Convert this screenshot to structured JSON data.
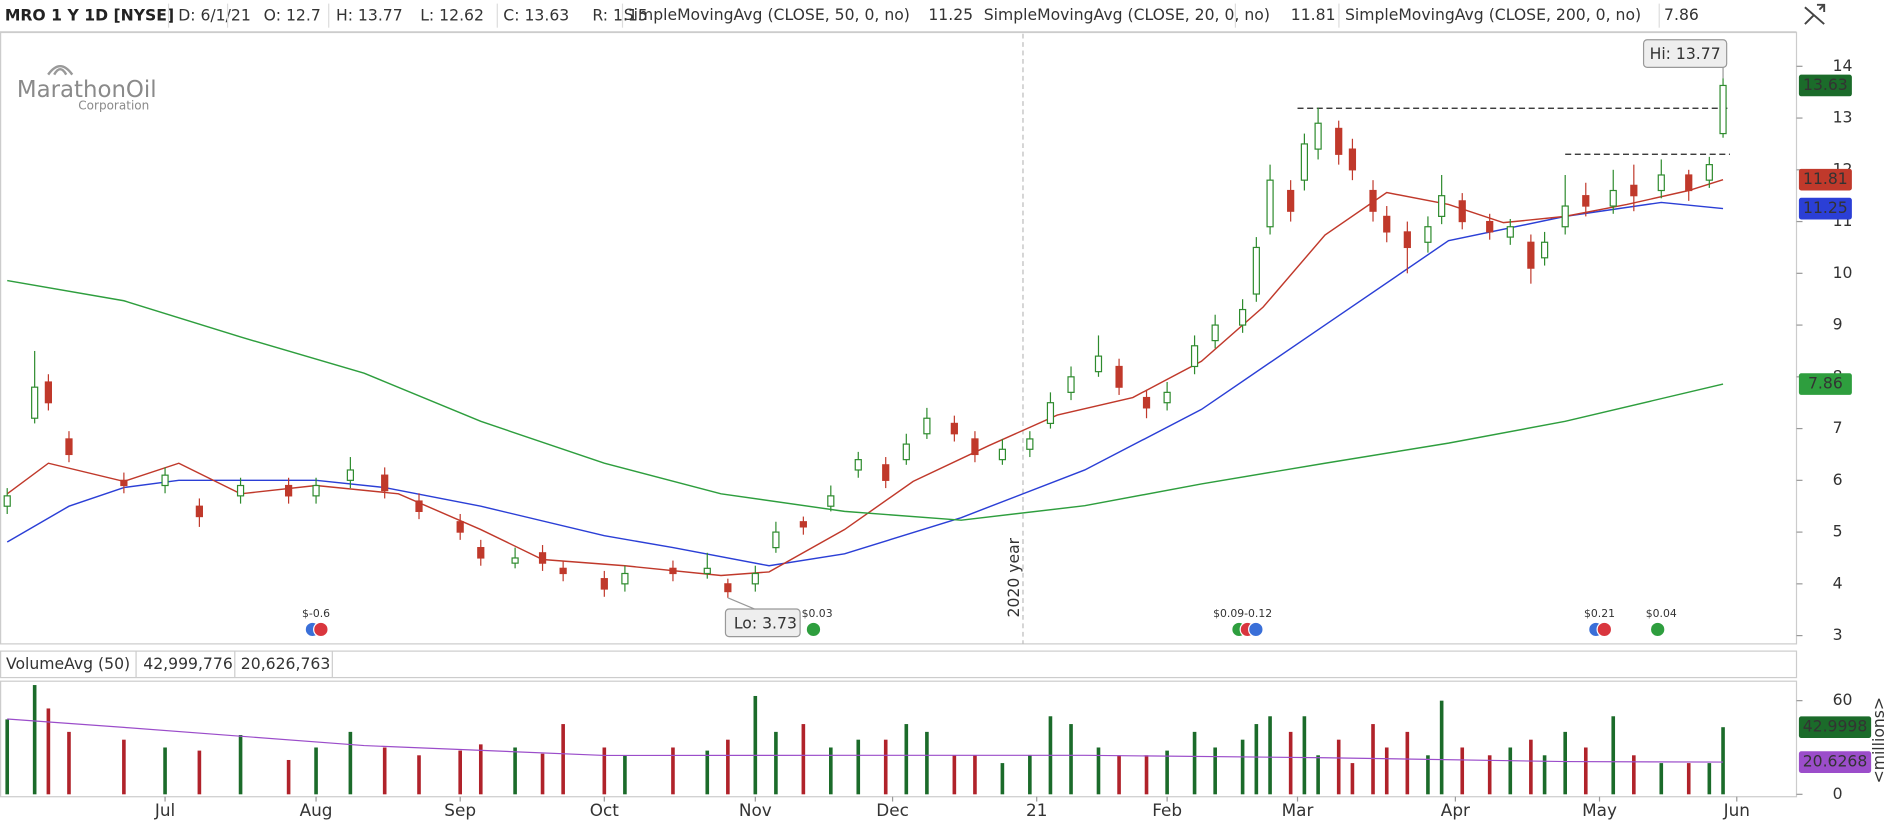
{
  "header": {
    "symbol": "MRO 1 Y 1D [NYSE]",
    "date_label": "D:",
    "date": "6/1/21",
    "open_label": "O:",
    "high_label": "H:",
    "low_label": "L:",
    "close_label": "C:",
    "range_label": "R:",
    "range": 1.15
  },
  "logo": {
    "name": "MarathonOil",
    "sub": "Corporation"
  },
  "year_marker": {
    "label": "2020 year",
    "x": 148
  },
  "events": [
    {
      "label": "$-0.6",
      "x": 45,
      "colors": [
        "#3a6fd8",
        "#d9363e"
      ]
    },
    {
      "label": "$0.03",
      "x": 118,
      "colors": [
        "#2e9e3e"
      ]
    },
    {
      "label": "$0.09-0.12",
      "x": 180,
      "colors": [
        "#2e9e3e",
        "#d9363e",
        "#3a6fd8"
      ]
    },
    {
      "label": "$0.21",
      "x": 232,
      "colors": [
        "#3a6fd8",
        "#d9363e"
      ]
    },
    {
      "label": "$0.04",
      "x": 241,
      "colors": [
        "#2e9e3e"
      ]
    }
  ],
  "chart_data": [
    {
      "type": "candlestick",
      "hi_label": "Hi:",
      "lo_label": "Lo:",
      "color_up": "#2e8b2e",
      "color_down": "#c0392b",
      "xlim": [
        -1.05,
        260.7
      ],
      "ylim": [
        2.84,
        14.63
      ],
      "yticks": [
        3,
        4,
        5,
        6,
        7,
        8,
        9,
        10,
        11,
        12,
        13,
        14
      ],
      "xticks": [
        {
          "value": 23,
          "label": "Jul"
        },
        {
          "value": 45,
          "label": "Aug"
        },
        {
          "value": 66,
          "label": "Sep"
        },
        {
          "value": 87,
          "label": "Oct"
        },
        {
          "value": 109,
          "label": "Nov"
        },
        {
          "value": 129,
          "label": "Dec"
        },
        {
          "value": 150,
          "label": "21"
        },
        {
          "value": 169,
          "label": "Feb"
        },
        {
          "value": 188,
          "label": "Mar"
        },
        {
          "value": 211,
          "label": "Apr"
        },
        {
          "value": 232,
          "label": "May"
        },
        {
          "value": 252,
          "label": "Jun"
        }
      ],
      "x": [
        0,
        4,
        6,
        9,
        17,
        23,
        28,
        34,
        41,
        45,
        50,
        55,
        60,
        66,
        69,
        74,
        78,
        81,
        87,
        90,
        97,
        102,
        105,
        109,
        112,
        116,
        120,
        124,
        128,
        131,
        134,
        138,
        141,
        145,
        149,
        152,
        155,
        159,
        162,
        166,
        169,
        173,
        176,
        180,
        182,
        184,
        187,
        189,
        191,
        194,
        196,
        199,
        201,
        204,
        207,
        209,
        212,
        216,
        219,
        222,
        224,
        227,
        230,
        234,
        237,
        241,
        245,
        248,
        250
      ],
      "open": [
        5.5,
        7.2,
        7.9,
        6.8,
        6.0,
        5.9,
        5.5,
        5.7,
        5.9,
        5.7,
        6.0,
        6.1,
        5.6,
        5.2,
        4.7,
        4.4,
        4.6,
        4.3,
        4.1,
        4.0,
        4.3,
        4.2,
        4.0,
        4.0,
        4.7,
        5.2,
        5.5,
        6.2,
        6.3,
        6.4,
        6.9,
        7.1,
        6.8,
        6.4,
        6.6,
        7.1,
        7.7,
        8.1,
        8.2,
        7.6,
        7.5,
        8.2,
        8.7,
        9.0,
        9.6,
        10.9,
        11.6,
        11.8,
        12.4,
        12.8,
        12.4,
        11.6,
        11.1,
        10.8,
        10.6,
        11.1,
        11.4,
        11.0,
        10.7,
        10.6,
        10.3,
        10.9,
        11.5,
        11.3,
        11.7,
        11.6,
        11.9,
        11.8,
        12.7
      ],
      "high": [
        5.85,
        8.5,
        8.05,
        6.95,
        6.15,
        6.25,
        5.65,
        6.05,
        6.05,
        6.05,
        6.45,
        6.25,
        5.75,
        5.35,
        4.85,
        4.7,
        4.75,
        4.45,
        4.25,
        4.35,
        4.45,
        4.6,
        4.1,
        4.35,
        5.2,
        5.3,
        5.9,
        6.55,
        6.45,
        6.9,
        7.4,
        7.25,
        6.95,
        6.8,
        6.95,
        7.7,
        8.2,
        8.8,
        8.35,
        7.75,
        7.9,
        8.8,
        9.2,
        9.5,
        10.7,
        12.1,
        11.8,
        12.7,
        13.2,
        12.95,
        12.6,
        11.8,
        11.3,
        11.0,
        11.1,
        11.9,
        11.55,
        11.15,
        11.05,
        10.75,
        10.8,
        11.9,
        11.75,
        12.0,
        12.1,
        12.2,
        12.0,
        12.25,
        13.77
      ],
      "low": [
        5.35,
        7.1,
        7.35,
        6.35,
        5.75,
        5.75,
        5.1,
        5.55,
        5.55,
        5.55,
        5.85,
        5.65,
        5.25,
        4.85,
        4.35,
        4.3,
        4.25,
        4.05,
        3.75,
        3.85,
        4.05,
        4.1,
        3.73,
        3.85,
        4.6,
        4.95,
        5.4,
        6.05,
        5.85,
        6.3,
        6.8,
        6.75,
        6.35,
        6.3,
        6.45,
        7.0,
        7.55,
        8.0,
        7.65,
        7.2,
        7.35,
        8.05,
        8.55,
        8.85,
        9.45,
        10.75,
        11.0,
        11.6,
        12.2,
        12.1,
        11.8,
        11.0,
        10.6,
        10.0,
        10.4,
        10.95,
        10.85,
        10.65,
        10.55,
        9.8,
        10.15,
        10.75,
        11.1,
        11.15,
        11.2,
        11.45,
        11.4,
        11.65,
        12.62
      ],
      "close": [
        5.7,
        7.8,
        7.5,
        6.5,
        5.9,
        6.1,
        5.3,
        5.9,
        5.7,
        5.9,
        6.2,
        5.8,
        5.4,
        5.0,
        4.5,
        4.5,
        4.4,
        4.2,
        3.9,
        4.2,
        4.2,
        4.3,
        3.85,
        4.2,
        5.0,
        5.1,
        5.7,
        6.4,
        6.0,
        6.7,
        7.2,
        6.9,
        6.5,
        6.6,
        6.8,
        7.5,
        8.0,
        8.4,
        7.8,
        7.4,
        7.7,
        8.6,
        9.0,
        9.3,
        10.5,
        11.8,
        11.2,
        12.5,
        12.9,
        12.3,
        12.0,
        11.2,
        10.8,
        10.5,
        10.9,
        11.5,
        11.0,
        10.8,
        10.9,
        10.1,
        10.6,
        11.3,
        11.3,
        11.6,
        11.5,
        11.9,
        11.6,
        12.1,
        13.63
      ],
      "resistance": [
        {
          "y": 13.19,
          "x": [
            188,
            251
          ]
        },
        {
          "y": 12.3,
          "x": [
            227,
            251
          ]
        }
      ],
      "series": [
        {
          "name": "SimpleMovingAvg (CLOSE, 50, 0, no)",
          "color": "#2b3fd6",
          "x": [
            0,
            9,
            17,
            25,
            45,
            55,
            69,
            87,
            97,
            111,
            122,
            139,
            157,
            174,
            192,
            210,
            227,
            241,
            250
          ],
          "values": [
            4.81,
            5.5,
            5.86,
            6.0,
            6.0,
            5.86,
            5.5,
            4.93,
            4.7,
            4.35,
            4.58,
            5.28,
            6.2,
            7.37,
            9.0,
            10.63,
            11.1,
            11.37,
            11.25
          ]
        },
        {
          "name": "SimpleMovingAvg (CLOSE, 20, 0, no)",
          "color": "#c0392b",
          "x": [
            0,
            6,
            17,
            25,
            34,
            45,
            57,
            69,
            78,
            90,
            104,
            111,
            122,
            132,
            143,
            153,
            164,
            174,
            183,
            192,
            201,
            210,
            218,
            227,
            236,
            245,
            250
          ],
          "values": [
            5.74,
            6.33,
            5.98,
            6.33,
            5.74,
            5.9,
            5.74,
            5.05,
            4.47,
            4.35,
            4.16,
            4.23,
            5.05,
            5.98,
            6.67,
            7.26,
            7.6,
            8.3,
            9.35,
            10.74,
            11.56,
            11.33,
            10.98,
            11.1,
            11.33,
            11.6,
            11.81
          ]
        },
        {
          "name": "SimpleMovingAvg (CLOSE, 200, 0, no)",
          "color": "#2e9e3e",
          "x": [
            0,
            17,
            34,
            52,
            69,
            87,
            104,
            122,
            139,
            157,
            174,
            192,
            210,
            227,
            250
          ],
          "values": [
            9.86,
            9.47,
            8.77,
            8.07,
            7.14,
            6.33,
            5.74,
            5.4,
            5.23,
            5.51,
            5.93,
            6.33,
            6.72,
            7.14,
            7.86
          ]
        }
      ]
    },
    {
      "type": "bar",
      "title": "VolumeAvg (50)",
      "header_values": [
        "42,999,776",
        "20,626,763"
      ],
      "axis_label": "<millions>",
      "color_up": "#1b6b2a",
      "color_down": "#b0222a",
      "xlim": [
        -1.05,
        260.7
      ],
      "ylim": [
        0,
        71.7
      ],
      "yticks": [
        0,
        60
      ],
      "x": [
        0,
        4,
        6,
        9,
        17,
        23,
        28,
        34,
        41,
        45,
        50,
        55,
        60,
        66,
        69,
        74,
        78,
        81,
        87,
        90,
        97,
        102,
        105,
        109,
        112,
        116,
        120,
        124,
        128,
        131,
        134,
        138,
        141,
        145,
        149,
        152,
        155,
        159,
        162,
        166,
        169,
        173,
        176,
        180,
        182,
        184,
        187,
        189,
        191,
        194,
        196,
        199,
        201,
        204,
        207,
        209,
        212,
        216,
        219,
        222,
        224,
        227,
        230,
        234,
        237,
        241,
        245,
        248,
        250
      ],
      "values": [
        48,
        70,
        55,
        40,
        35,
        30,
        28,
        38,
        22,
        30,
        40,
        30,
        25,
        28,
        32,
        30,
        26,
        45,
        30,
        25,
        30,
        28,
        35,
        63,
        40,
        45,
        30,
        35,
        35,
        45,
        40,
        25,
        25,
        20,
        25,
        50,
        45,
        30,
        25,
        25,
        28,
        40,
        30,
        35,
        45,
        50,
        40,
        50,
        25,
        35,
        20,
        45,
        30,
        40,
        25,
        60,
        30,
        25,
        30,
        35,
        25,
        40,
        30,
        50,
        25,
        20,
        20,
        20,
        42.9998
      ],
      "avg": {
        "color": "#9b4dca",
        "x": [
          0,
          17,
          52,
          87,
          122,
          157,
          192,
          227,
          250
        ],
        "values": [
          48.3,
          42.9,
          31.2,
          24.9,
          25,
          25,
          23.4,
          21,
          20.6268
        ]
      }
    }
  ]
}
